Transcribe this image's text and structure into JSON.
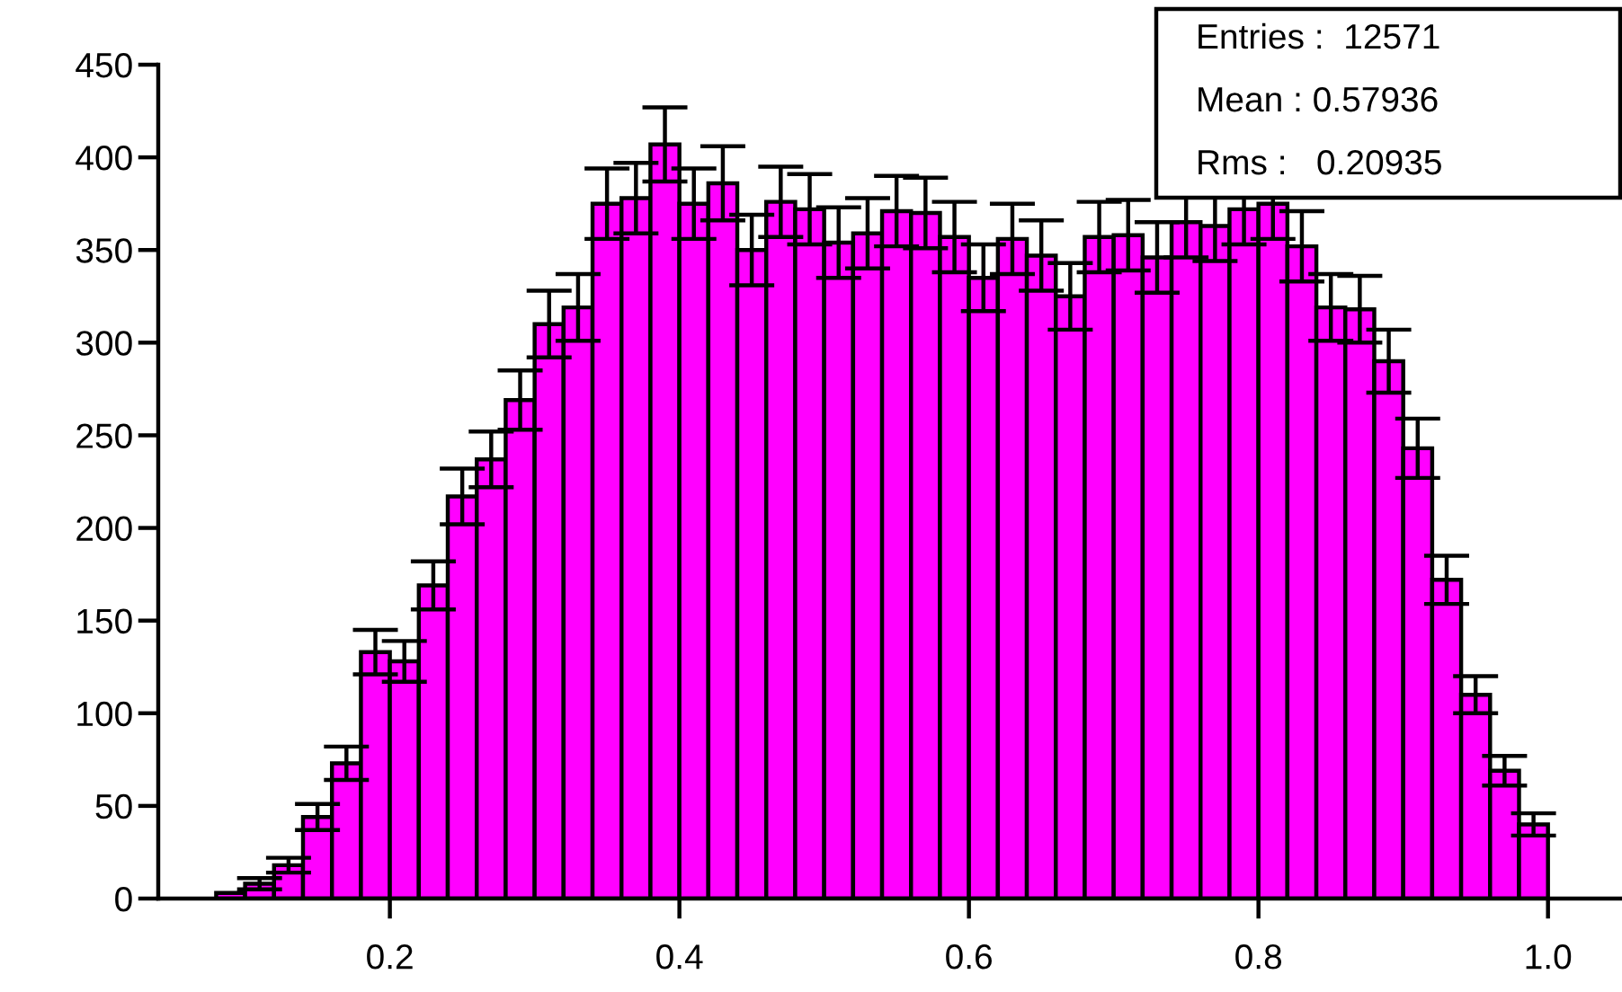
{
  "chart_data": {
    "type": "histogram",
    "bins": [
      0.08,
      0.1,
      0.12,
      0.14,
      0.16,
      0.18,
      0.2,
      0.22,
      0.24,
      0.26,
      0.28,
      0.3,
      0.32,
      0.34,
      0.36,
      0.38,
      0.4,
      0.42,
      0.44,
      0.46,
      0.48,
      0.5,
      0.52,
      0.54,
      0.56,
      0.58,
      0.6,
      0.62,
      0.64,
      0.66,
      0.68,
      0.7,
      0.72,
      0.74,
      0.76,
      0.78,
      0.8,
      0.82,
      0.84,
      0.86,
      0.88,
      0.9,
      0.92,
      0.94,
      0.96,
      0.98,
      1.0
    ],
    "values": [
      3,
      8,
      18,
      44,
      73,
      133,
      128,
      169,
      217,
      237,
      269,
      310,
      319,
      375,
      378,
      407,
      375,
      386,
      350,
      376,
      372,
      354,
      359,
      371,
      370,
      357,
      335,
      356,
      347,
      325,
      357,
      358,
      346,
      365,
      363,
      372,
      375,
      352,
      319,
      318,
      290,
      243,
      172,
      110,
      69,
      40
    ],
    "errors": [
      null,
      3,
      4,
      7,
      9,
      12,
      11,
      13,
      15,
      15,
      16,
      18,
      18,
      19,
      19,
      20,
      19,
      20,
      19,
      19,
      19,
      19,
      19,
      19,
      19,
      19,
      18,
      19,
      19,
      18,
      19,
      19,
      19,
      19,
      19,
      19,
      19,
      19,
      18,
      18,
      17,
      16,
      13,
      10,
      8,
      6
    ],
    "color": "#ff00ff",
    "xlim": [
      0.04,
      1.05
    ],
    "xticks": [
      0.2,
      0.4,
      0.6,
      0.8,
      {
        "value": 1.0,
        "label": "1.0"
      }
    ],
    "ylim": [
      0,
      450
    ],
    "yticks": [
      0,
      50,
      100,
      150,
      200,
      250,
      300,
      350,
      400,
      450
    ],
    "grid": false,
    "legend": false,
    "annotations": [
      "Entries :  12571",
      "Mean : 0.57936",
      "Rms :   0.20935"
    ]
  }
}
